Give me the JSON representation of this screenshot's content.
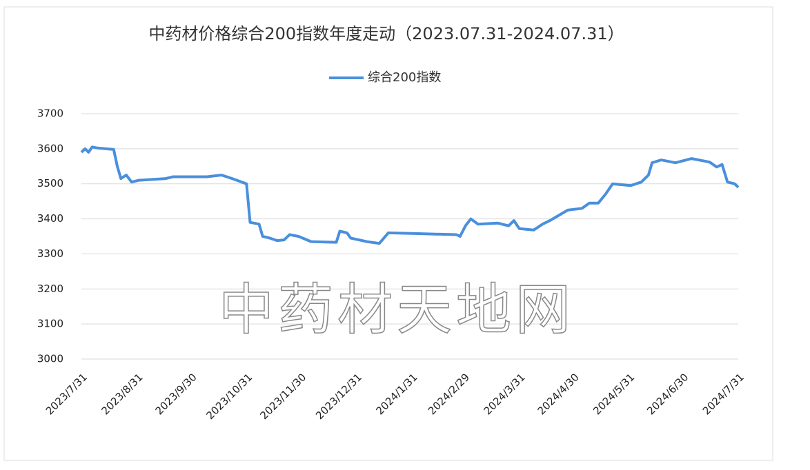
{
  "chart_data": {
    "type": "line",
    "title": "中药材价格综合200指数年度走动（2023.07.31-2024.07.31）",
    "watermark": "中药材天地网",
    "x": [
      "2023/7/31",
      "2023/8/2",
      "2023/8/4",
      "2023/8/6",
      "2023/8/9",
      "2023/8/18",
      "2023/8/20",
      "2023/8/22",
      "2023/8/25",
      "2023/8/28",
      "2023/9/1",
      "2023/9/16",
      "2023/9/20",
      "2023/10/9",
      "2023/10/17",
      "2023/10/23",
      "2023/10/31",
      "2023/11/2",
      "2023/11/7",
      "2023/11/9",
      "2023/11/13",
      "2023/11/17",
      "2023/11/21",
      "2023/11/24",
      "2023/11/29",
      "2023/12/6",
      "2023/12/20",
      "2023/12/22",
      "2023/12/26",
      "2023/12/28",
      "2024/1/6",
      "2024/1/13",
      "2024/1/18",
      "2024/2/2",
      "2024/2/25",
      "2024/2/27",
      "2024/3/1",
      "2024/3/4",
      "2024/3/8",
      "2024/3/19",
      "2024/3/25",
      "2024/3/28",
      "2024/3/31",
      "2024/4/8",
      "2024/4/13",
      "2024/4/17",
      "2024/4/22",
      "2024/4/27",
      "2024/5/5",
      "2024/5/9",
      "2024/5/14",
      "2024/5/18",
      "2024/5/22",
      "2024/6/1",
      "2024/6/7",
      "2024/6/11",
      "2024/6/13",
      "2024/6/18",
      "2024/6/26",
      "2024/7/5",
      "2024/7/15",
      "2024/7/19",
      "2024/7/22",
      "2024/7/25",
      "2024/7/29",
      "2024/7/31"
    ],
    "series": [
      {
        "name": "综合200指数",
        "color": "#4a8fdc",
        "values": [
          3590,
          3600,
          3590,
          3605,
          3602,
          3598,
          3550,
          3515,
          3525,
          3505,
          3510,
          3515,
          3520,
          3520,
          3525,
          3515,
          3500,
          3390,
          3385,
          3350,
          3345,
          3338,
          3340,
          3355,
          3350,
          3335,
          3333,
          3365,
          3360,
          3345,
          3335,
          3330,
          3360,
          3358,
          3355,
          3350,
          3380,
          3400,
          3385,
          3388,
          3380,
          3395,
          3372,
          3368,
          3385,
          3395,
          3410,
          3425,
          3430,
          3445,
          3445,
          3470,
          3500,
          3495,
          3505,
          3525,
          3560,
          3568,
          3560,
          3572,
          3562,
          3548,
          3555,
          3505,
          3500,
          3490
        ]
      }
    ],
    "xlim": [
      "2023/7/31",
      "2024/7/31"
    ],
    "xticks": [
      "2023/7/31",
      "2023/8/31",
      "2023/9/30",
      "2023/10/31",
      "2023/11/30",
      "2023/12/31",
      "2024/1/31",
      "2024/2/29",
      "2024/3/31",
      "2024/4/30",
      "2024/5/31",
      "2024/6/30",
      "2024/7/31"
    ],
    "ylim": [
      3000,
      3700
    ],
    "yticks": [
      3000,
      3100,
      3200,
      3300,
      3400,
      3500,
      3600,
      3700
    ],
    "grid": true,
    "legend": "top"
  }
}
